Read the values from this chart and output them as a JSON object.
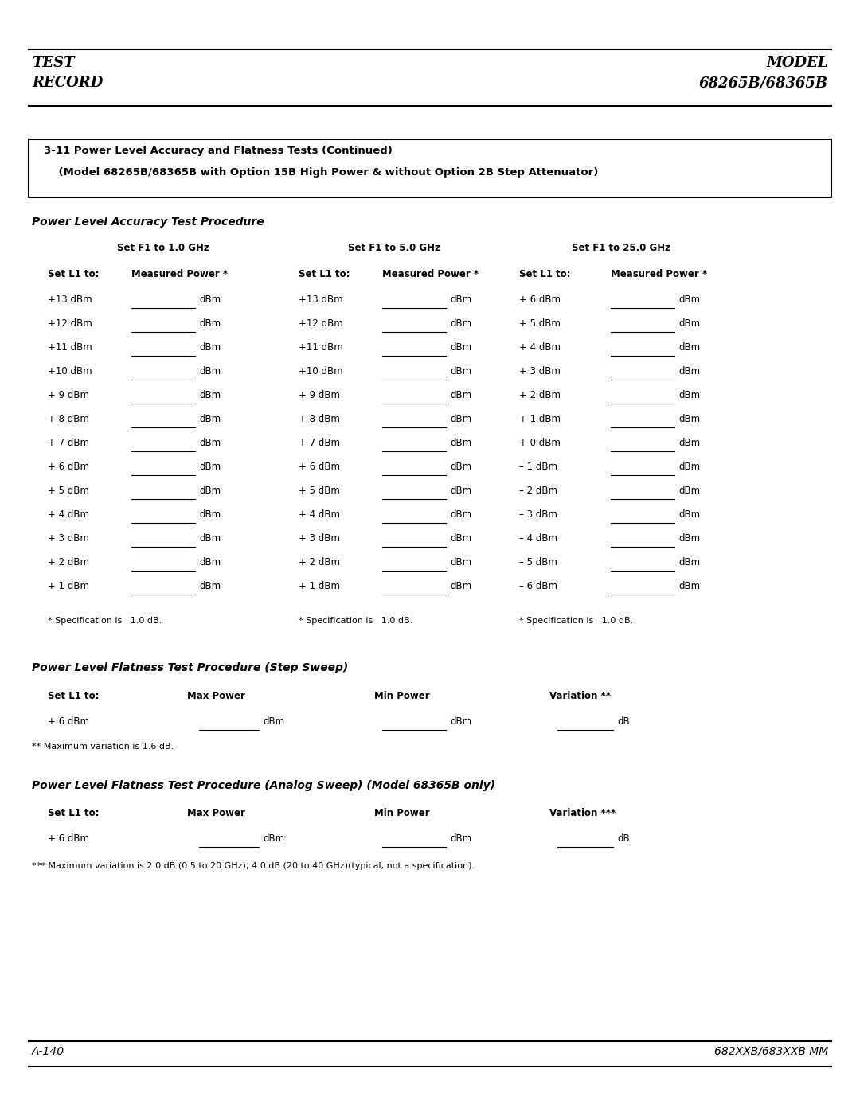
{
  "page_width": 10.8,
  "page_height": 13.97,
  "bg_color": "#ffffff",
  "header_left1": "TEST",
  "header_left2": "RECORD",
  "header_right1": "MODEL",
  "header_right2": "68265B/68365B",
  "box_title_line1": "3-11 Power Level Accuracy and Flatness Tests (Continued)",
  "box_title_line2": "    (Model 68265B/68365B with Option 15B High Power & without Option 2B Step Attenuator)",
  "section1_title": "Power Level Accuracy Test Procedure",
  "freq_headers": [
    "Set F1 to 1.0 GHz",
    "Set F1 to 5.0 GHz",
    "Set F1 to 25.0 GHz"
  ],
  "sub_headers": [
    "Set L1 to:",
    "Measured Power *",
    "Set L1 to:",
    "Measured Power *",
    "Set L1 to:",
    "Measured Power *"
  ],
  "col1_values": [
    "+13 dBm",
    "+12 dBm",
    "+11 dBm",
    "+10 dBm",
    "+ 9 dBm",
    "+ 8 dBm",
    "+ 7 dBm",
    "+ 6 dBm",
    "+ 5 dBm",
    "+ 4 dBm",
    "+ 3 dBm",
    "+ 2 dBm",
    "+ 1 dBm"
  ],
  "col3_values": [
    "+13 dBm",
    "+12 dBm",
    "+11 dBm",
    "+10 dBm",
    "+ 9 dBm",
    "+ 8 dBm",
    "+ 7 dBm",
    "+ 6 dBm",
    "+ 5 dBm",
    "+ 4 dBm",
    "+ 3 dBm",
    "+ 2 dBm",
    "+ 1 dBm"
  ],
  "col5_values": [
    "+ 6 dBm",
    "+ 5 dBm",
    "+ 4 dBm",
    "+ 3 dBm",
    "+ 2 dBm",
    "+ 1 dBm",
    "+ 0 dBm",
    "– 1 dBm",
    "– 2 dBm",
    "– 3 dBm",
    "– 4 dBm",
    "– 5 dBm",
    "– 6 dBm"
  ],
  "spec_note": "* Specification is   1.0 dB.",
  "section2_title": "Power Level Flatness Test Procedure (Step Sweep)",
  "flatness_headers": [
    "Set L1 to:",
    "Max Power",
    "Min Power",
    "Variation **"
  ],
  "flatness_row": "+ 6 dBm",
  "flatness_note": "** Maximum variation is 1.6 dB.",
  "section3_title": "Power Level Flatness Test Procedure (Analog Sweep) (Model 68365B only)",
  "analog_headers": [
    "Set L1 to:",
    "Max Power",
    "Min Power",
    "Variation ***"
  ],
  "analog_row": "+ 6 dBm",
  "analog_note": "*** Maximum variation is 2.0 dB (0.5 to 20 GHz); 4.0 dB (20 to 40 GHz)(typical, not a specification).",
  "footer_left": "A-140",
  "footer_right": "682XXB/683XXB MM"
}
